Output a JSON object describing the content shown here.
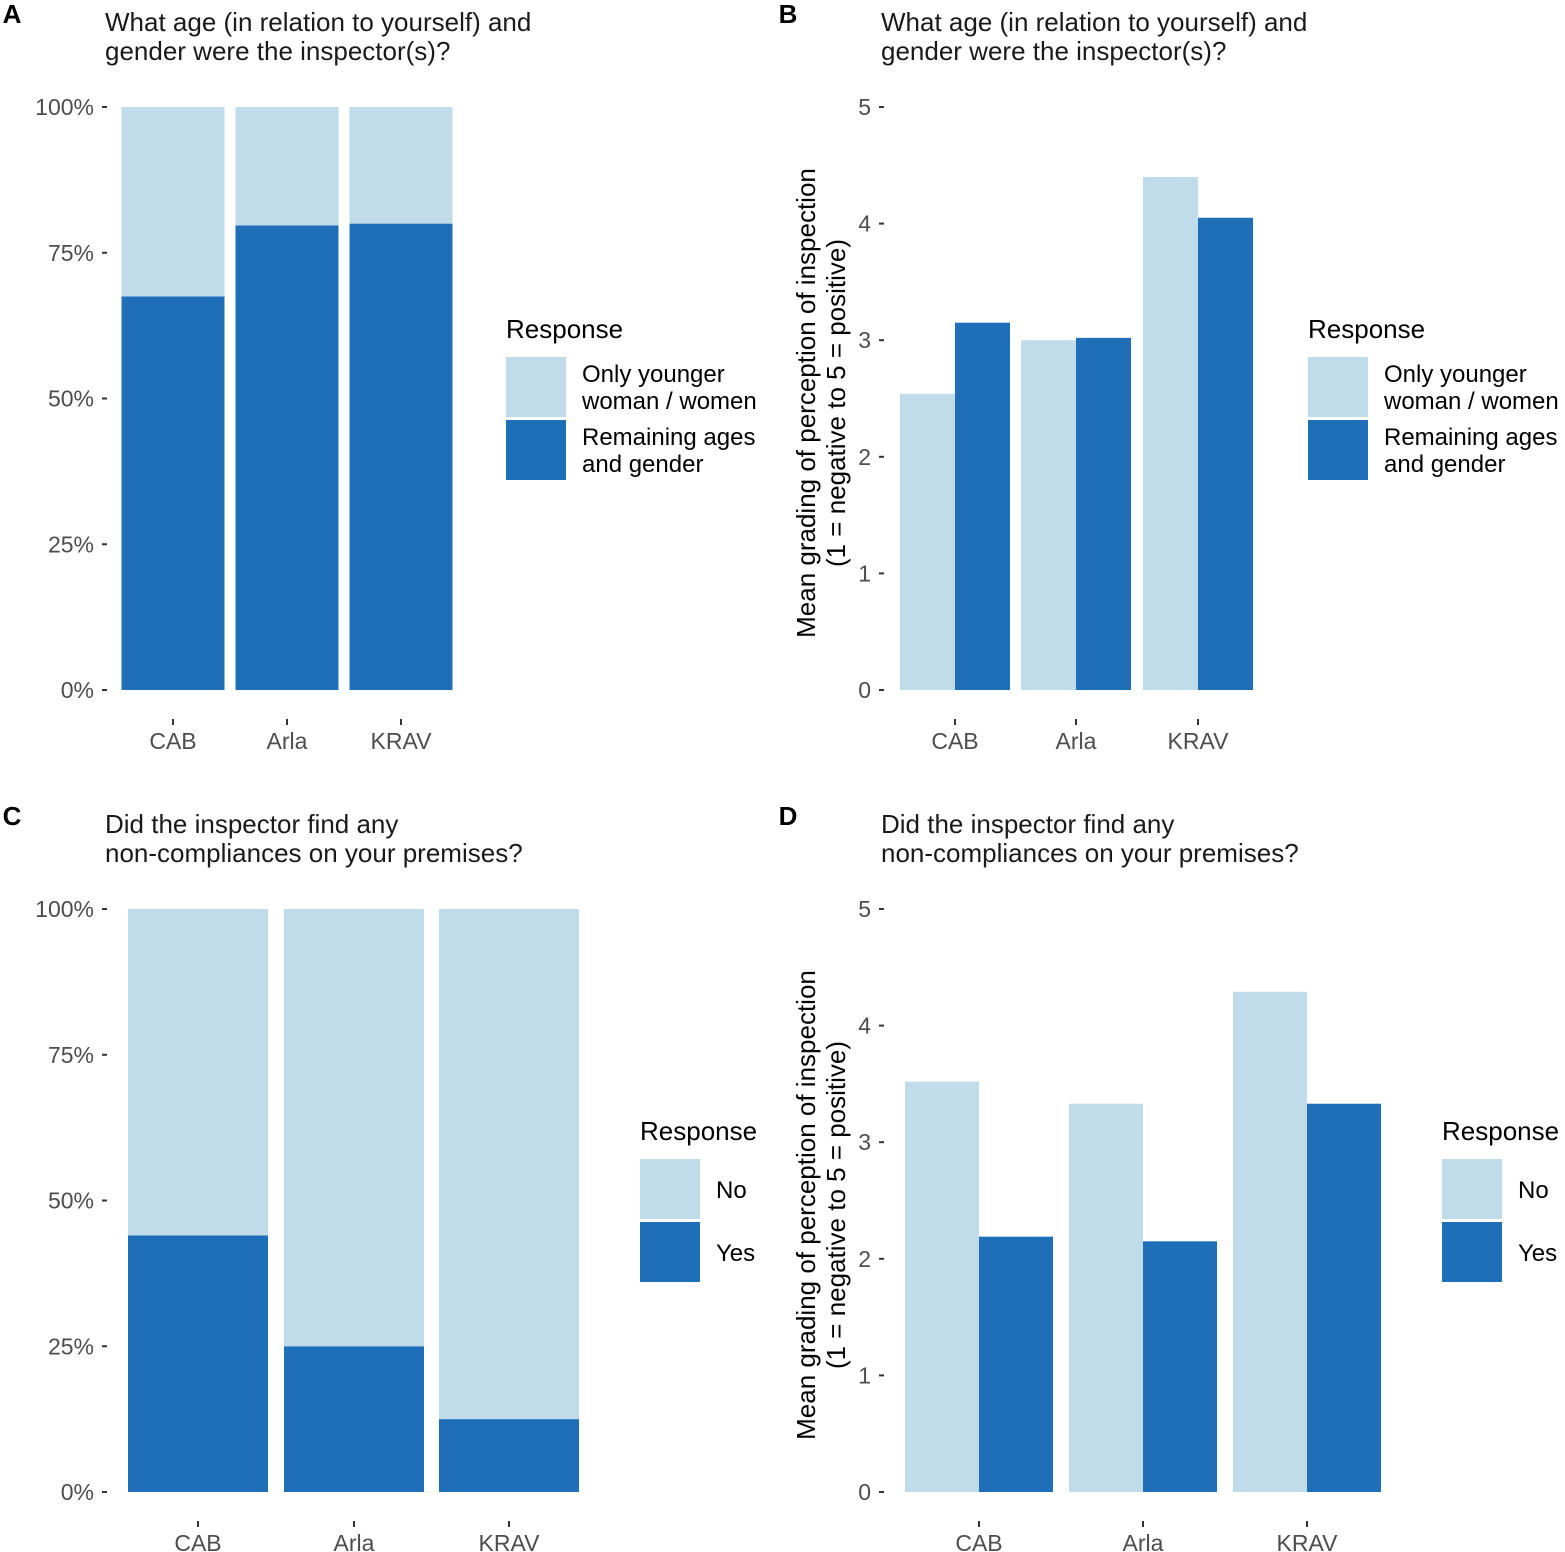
{
  "colors": {
    "light": "#c0dcea",
    "dark": "#1f6fb8"
  },
  "chart_data": [
    {
      "panel": "A",
      "type": "bar",
      "stacked": true,
      "title": [
        "What age (in relation to yourself) and",
        "gender were the inspector(s)?"
      ],
      "categories": [
        "CAB",
        "Arla",
        "KRAV"
      ],
      "ylim": [
        0,
        100
      ],
      "yticks": [
        "0%",
        "25%",
        "50%",
        "75%",
        "100%"
      ],
      "ylabel": [],
      "series": [
        {
          "name": "Only younger woman / women",
          "values": [
            32.5,
            20.3,
            20.0
          ]
        },
        {
          "name": "Remaining ages and gender",
          "values": [
            67.5,
            79.7,
            80.0
          ]
        }
      ],
      "legend": {
        "title": "Response",
        "items": [
          {
            "lines": [
              "Only younger",
              "woman / women"
            ]
          },
          {
            "lines": [
              "Remaining ages",
              "and gender"
            ]
          }
        ]
      }
    },
    {
      "panel": "B",
      "type": "bar",
      "stacked": false,
      "title": [
        "What age (in relation to yourself) and",
        "gender were the inspector(s)?"
      ],
      "categories": [
        "CAB",
        "Arla",
        "KRAV"
      ],
      "ylim": [
        0,
        5
      ],
      "yticks": [
        "0",
        "1",
        "2",
        "3",
        "4",
        "5"
      ],
      "ylabel": [
        "Mean grading of perception of inspection",
        "(1 = negative to 5 = positive)"
      ],
      "series": [
        {
          "name": "Only younger woman / women",
          "values": [
            2.54,
            3.0,
            4.4
          ]
        },
        {
          "name": "Remaining ages and gender",
          "values": [
            3.15,
            3.02,
            4.05
          ]
        }
      ],
      "legend": {
        "title": "Response",
        "items": [
          {
            "lines": [
              "Only younger",
              "woman / women"
            ]
          },
          {
            "lines": [
              "Remaining ages",
              "and gender"
            ]
          }
        ]
      }
    },
    {
      "panel": "C",
      "type": "bar",
      "stacked": true,
      "title": [
        "Did the inspector find any",
        "non-compliances on your premises?"
      ],
      "categories": [
        "CAB",
        "Arla",
        "KRAV"
      ],
      "ylim": [
        0,
        100
      ],
      "yticks": [
        "0%",
        "25%",
        "50%",
        "75%",
        "100%"
      ],
      "ylabel": [],
      "series": [
        {
          "name": "No",
          "values": [
            56.0,
            75.0,
            87.5
          ]
        },
        {
          "name": "Yes",
          "values": [
            44.0,
            25.0,
            12.5
          ]
        }
      ],
      "legend": {
        "title": "Response",
        "items": [
          {
            "lines": [
              "No"
            ]
          },
          {
            "lines": [
              "Yes"
            ]
          }
        ]
      }
    },
    {
      "panel": "D",
      "type": "bar",
      "stacked": false,
      "title": [
        "Did the inspector find any",
        "non-compliances on your premises?"
      ],
      "categories": [
        "CAB",
        "Arla",
        "KRAV"
      ],
      "ylim": [
        0,
        5
      ],
      "yticks": [
        "0",
        "1",
        "2",
        "3",
        "4",
        "5"
      ],
      "ylabel": [
        "Mean grading of perception of inspection",
        "(1 = negative to 5 = positive)"
      ],
      "series": [
        {
          "name": "No",
          "values": [
            3.52,
            3.33,
            4.29
          ]
        },
        {
          "name": "Yes",
          "values": [
            2.19,
            2.15,
            3.33
          ]
        }
      ],
      "legend": {
        "title": "Response",
        "items": [
          {
            "lines": [
              "No"
            ]
          },
          {
            "lines": [
              "Yes"
            ]
          }
        ]
      }
    }
  ]
}
